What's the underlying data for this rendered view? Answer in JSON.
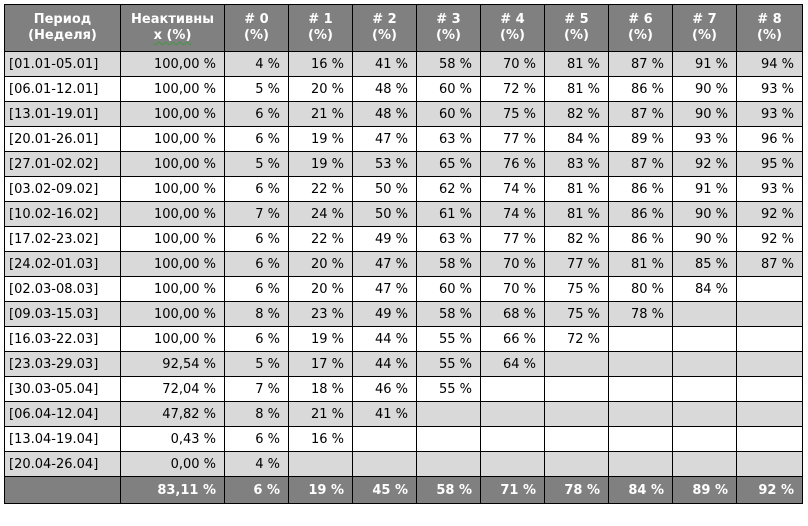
{
  "table": {
    "headers": {
      "period_line1": "Период",
      "period_line2": "(Неделя)",
      "inactive_line1": "Неактивны",
      "inactive_line2": "х (%)",
      "weeks": [
        {
          "line1": "# 0",
          "line2": "(%)"
        },
        {
          "line1": "# 1",
          "line2": "(%)"
        },
        {
          "line1": "# 2",
          "line2": "(%)"
        },
        {
          "line1": "# 3",
          "line2": "(%)"
        },
        {
          "line1": "# 4",
          "line2": "(%)"
        },
        {
          "line1": "# 5",
          "line2": "(%)"
        },
        {
          "line1": "# 6",
          "line2": "(%)"
        },
        {
          "line1": "# 7",
          "line2": "(%)"
        },
        {
          "line1": "# 8",
          "line2": "(%)"
        }
      ]
    },
    "rows": [
      {
        "period": "[01.01-05.01]",
        "inactive": "100,00 %",
        "w0": "4 %",
        "w1": "16 %",
        "w2": "41 %",
        "w3": "58 %",
        "w4": "70 %",
        "w5": "81 %",
        "w6": "87 %",
        "w7": "91 %",
        "w8": "94 %"
      },
      {
        "period": "[06.01-12.01]",
        "inactive": "100,00 %",
        "w0": "5 %",
        "w1": "20 %",
        "w2": "48 %",
        "w3": "60 %",
        "w4": "72 %",
        "w5": "81 %",
        "w6": "86 %",
        "w7": "90 %",
        "w8": "93 %"
      },
      {
        "period": "[13.01-19.01]",
        "inactive": "100,00 %",
        "w0": "6 %",
        "w1": "21 %",
        "w2": "48 %",
        "w3": "60 %",
        "w4": "75 %",
        "w5": "82 %",
        "w6": "87 %",
        "w7": "90 %",
        "w8": "93 %"
      },
      {
        "period": "[20.01-26.01]",
        "inactive": "100,00 %",
        "w0": "6 %",
        "w1": "19 %",
        "w2": "47 %",
        "w3": "63 %",
        "w4": "77 %",
        "w5": "84 %",
        "w6": "89 %",
        "w7": "93 %",
        "w8": "96 %"
      },
      {
        "period": "[27.01-02.02]",
        "inactive": "100,00 %",
        "w0": "5 %",
        "w1": "19 %",
        "w2": "53 %",
        "w3": "65 %",
        "w4": "76 %",
        "w5": "83 %",
        "w6": "87 %",
        "w7": "92 %",
        "w8": "95 %"
      },
      {
        "period": "[03.02-09.02]",
        "inactive": "100,00 %",
        "w0": "6 %",
        "w1": "22 %",
        "w2": "50 %",
        "w3": "62 %",
        "w4": "74 %",
        "w5": "81 %",
        "w6": "86 %",
        "w7": "91 %",
        "w8": "93 %"
      },
      {
        "period": "[10.02-16.02]",
        "inactive": "100,00 %",
        "w0": "7 %",
        "w1": "24 %",
        "w2": "50 %",
        "w3": "61 %",
        "w4": "74 %",
        "w5": "81 %",
        "w6": "86 %",
        "w7": "90 %",
        "w8": "92 %"
      },
      {
        "period": "[17.02-23.02]",
        "inactive": "100,00 %",
        "w0": "6 %",
        "w1": "22 %",
        "w2": "49 %",
        "w3": "63 %",
        "w4": "77 %",
        "w5": "82 %",
        "w6": "86 %",
        "w7": "90 %",
        "w8": "92 %"
      },
      {
        "period": "[24.02-01.03]",
        "inactive": "100,00 %",
        "w0": "6 %",
        "w1": "20 %",
        "w2": "47 %",
        "w3": "58 %",
        "w4": "70 %",
        "w5": "77 %",
        "w6": "81 %",
        "w7": "85 %",
        "w8": "87 %"
      },
      {
        "period": "[02.03-08.03]",
        "inactive": "100,00 %",
        "w0": "6 %",
        "w1": "20 %",
        "w2": "47 %",
        "w3": "60 %",
        "w4": "70 %",
        "w5": "75 %",
        "w6": "80 %",
        "w7": "84 %",
        "w8": ""
      },
      {
        "period": "[09.03-15.03]",
        "inactive": "100,00 %",
        "w0": "8 %",
        "w1": "23 %",
        "w2": "49 %",
        "w3": "58 %",
        "w4": "68 %",
        "w5": "75 %",
        "w6": "78 %",
        "w7": "",
        "w8": ""
      },
      {
        "period": "[16.03-22.03]",
        "inactive": "100,00 %",
        "w0": "6 %",
        "w1": "19 %",
        "w2": "44 %",
        "w3": "55 %",
        "w4": "66 %",
        "w5": "72 %",
        "w6": "",
        "w7": "",
        "w8": ""
      },
      {
        "period": "[23.03-29.03]",
        "inactive": "92,54 %",
        "w0": "5 %",
        "w1": "17 %",
        "w2": "44 %",
        "w3": "55 %",
        "w4": "64 %",
        "w5": "",
        "w6": "",
        "w7": "",
        "w8": ""
      },
      {
        "period": "[30.03-05.04]",
        "inactive": "72,04 %",
        "w0": "7 %",
        "w1": "18 %",
        "w2": "46 %",
        "w3": "55 %",
        "w4": "",
        "w5": "",
        "w6": "",
        "w7": "",
        "w8": ""
      },
      {
        "period": "[06.04-12.04]",
        "inactive": "47,82 %",
        "w0": "8 %",
        "w1": "21 %",
        "w2": "41 %",
        "w3": "",
        "w4": "",
        "w5": "",
        "w6": "",
        "w7": "",
        "w8": ""
      },
      {
        "period": "[13.04-19.04]",
        "inactive": "0,43 %",
        "w0": "6 %",
        "w1": "16 %",
        "w2": "",
        "w3": "",
        "w4": "",
        "w5": "",
        "w6": "",
        "w7": "",
        "w8": ""
      },
      {
        "period": "[20.04-26.04]",
        "inactive": "0,00 %",
        "w0": "4 %",
        "w1": "",
        "w2": "",
        "w3": "",
        "w4": "",
        "w5": "",
        "w6": "",
        "w7": "",
        "w8": ""
      }
    ],
    "totals": {
      "period": "",
      "inactive": "83,11 %",
      "w0": "6 %",
      "w1": "19 %",
      "w2": "45 %",
      "w3": "58 %",
      "w4": "71 %",
      "w5": "78 %",
      "w6": "84 %",
      "w7": "89 %",
      "w8": "92 %"
    }
  },
  "colors": {
    "header_bg": "#808080",
    "header_text": "#ffffff",
    "shaded_row_bg": "#d9d9d9",
    "plain_row_bg": "#ffffff",
    "border": "#000000",
    "spellcheck_underline": "#3c9a3c"
  }
}
